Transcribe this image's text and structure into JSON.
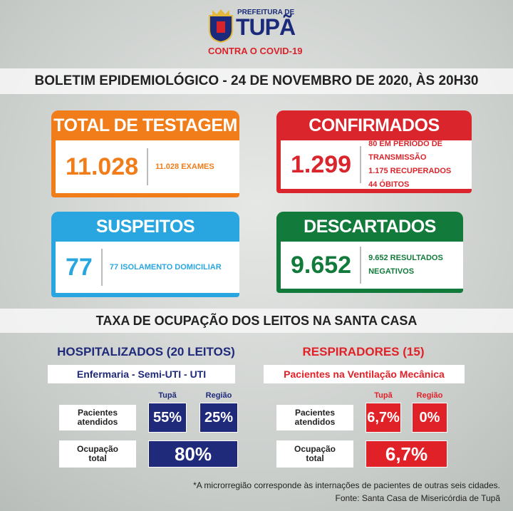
{
  "header": {
    "prefix": "PREFEITURA DE",
    "city": "TUPÃ",
    "campaign": "CONTRA O COVID-19"
  },
  "bulletin": "BOLETIM EPIDEMIOLÓGICO - 24 DE NOVEMBRO DE 2020, ÀS 20H30",
  "cards": [
    {
      "title": "TOTAL DE TESTAGEM",
      "number": "11.028",
      "details": [
        "11.028 EXAMES"
      ]
    },
    {
      "title": "CONFIRMADOS",
      "number": "1.299",
      "details": [
        "80 EM PERÍODO DE TRANSMISSÃO",
        "1.175 RECUPERADOS",
        "44  ÓBITOS"
      ]
    },
    {
      "title": "SUSPEITOS",
      "number": "77",
      "details": [
        "77 ISOLAMENTO DOMICILIAR"
      ]
    },
    {
      "title": "DESCARTADOS",
      "number": "9.652",
      "details": [
        "9.652 RESULTADOS NEGATIVOS"
      ]
    }
  ],
  "occupancy": {
    "title": "TAXA DE OCUPAÇÃO DOS LEITOS NA SANTA CASA",
    "panels": [
      {
        "title": "HOSPITALIZADOS (20 LEITOS)",
        "subtitle": "Enfermaria - Semi-UTI - UTI",
        "columns": [
          "Tupã",
          "Região"
        ],
        "rows": [
          {
            "label": "Pacientes atendidos",
            "values": [
              "55%",
              "25%"
            ]
          },
          {
            "label": "Ocupação total",
            "values": [
              "80%"
            ]
          }
        ]
      },
      {
        "title": "RESPIRADORES (15)",
        "subtitle": "Pacientes na Ventilação Mecânica",
        "columns": [
          "Tupã",
          "Região"
        ],
        "rows": [
          {
            "label": "Pacientes atendidos",
            "values": [
              "6,7%",
              "0%"
            ]
          },
          {
            "label": "Ocupação total",
            "values": [
              "6,7%"
            ]
          }
        ]
      }
    ]
  },
  "footnote": "*A microrregião corresponde às internações de pacientes de outras seis cidades.",
  "source": "Fonte: Santa Casa de Misericórdia de Tupã"
}
